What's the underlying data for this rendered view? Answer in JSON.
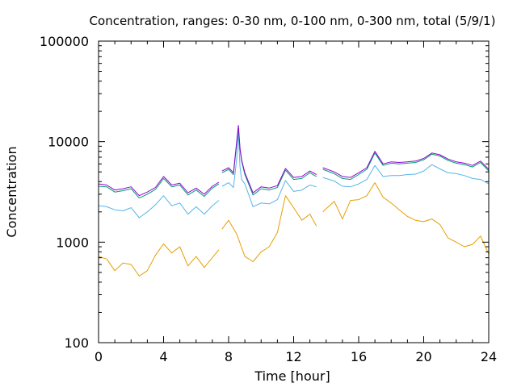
{
  "chart_data": {
    "type": "line",
    "title": "Concentration, ranges: 0-30 nm, 0-100 nm, 0-300 nm, total (5/9/1)",
    "xlabel": "Time [hour]",
    "ylabel": "Concentration",
    "xlim": [
      0,
      24
    ],
    "ylim": [
      100,
      100000
    ],
    "yscale": "log",
    "grid": false,
    "legend": "none",
    "x_ticks": [
      0,
      4,
      8,
      12,
      16,
      20,
      24
    ],
    "x_tick_labels": [
      "0",
      "4",
      "8",
      "12",
      "16",
      "20",
      "24"
    ],
    "y_ticks": [
      100,
      1000,
      10000,
      100000
    ],
    "y_tick_labels": [
      "100",
      "1000",
      "10000",
      "100000"
    ],
    "series": [
      {
        "color": "#e69f00",
        "segments": [
          {
            "x": [
              0.0,
              0.5,
              1.0,
              1.5,
              2.0,
              2.5,
              3.0,
              3.5,
              4.0,
              4.5,
              5.0,
              5.5,
              6.0,
              6.5,
              7.0,
              7.4
            ],
            "y": [
              720,
              680,
              520,
              620,
              600,
              460,
              520,
              740,
              960,
              780,
              900,
              580,
              720,
              560,
              700,
              840
            ]
          },
          {
            "x": [
              7.6,
              8.0,
              8.5,
              9.0,
              9.5,
              10.0,
              10.5,
              11.0,
              11.5,
              12.0,
              12.5,
              13.0,
              13.4
            ],
            "y": [
              1350,
              1650,
              1200,
              720,
              640,
              800,
              900,
              1250,
              2900,
              2200,
              1650,
              1900,
              1450
            ]
          },
          {
            "x": [
              13.8,
              14.5,
              15.0,
              15.5,
              16.0,
              16.5,
              17.0,
              17.5,
              18.0,
              18.5,
              19.0,
              19.5,
              20.0,
              20.5,
              21.0,
              21.5,
              22.0,
              22.5,
              23.0,
              23.5,
              24.0
            ],
            "y": [
              2000,
              2550,
              1700,
              2600,
              2650,
              2900,
              3900,
              2800,
              2450,
              2100,
              1800,
              1650,
              1600,
              1700,
              1500,
              1100,
              1000,
              900,
              950,
              1150,
              760
            ]
          }
        ]
      },
      {
        "color": "#56b4e9",
        "segments": [
          {
            "x": [
              0.0,
              0.5,
              1.0,
              1.5,
              2.0,
              2.5,
              3.0,
              3.5,
              4.0,
              4.5,
              5.0,
              5.5,
              6.0,
              6.5,
              7.0,
              7.4
            ],
            "y": [
              2300,
              2250,
              2100,
              2050,
              2200,
              1750,
              2000,
              2350,
              2900,
              2300,
              2450,
              1900,
              2250,
              1900,
              2300,
              2600
            ]
          },
          {
            "x": [
              7.6,
              8.0,
              8.3,
              8.5,
              8.6,
              8.7,
              8.8,
              9.0,
              9.5,
              10.0,
              10.5,
              11.0,
              11.5,
              12.0,
              12.5,
              13.0,
              13.4
            ],
            "y": [
              3600,
              3900,
              3500,
              6800,
              12500,
              5600,
              4200,
              3800,
              2250,
              2450,
              2400,
              2650,
              4100,
              3200,
              3300,
              3700,
              3550
            ]
          },
          {
            "x": [
              13.8,
              14.5,
              15.0,
              15.5,
              16.0,
              16.5,
              17.0,
              17.5,
              18.0,
              18.5,
              19.0,
              19.5,
              20.0,
              20.5,
              21.0,
              21.5,
              22.0,
              22.5,
              23.0,
              23.5,
              24.0
            ],
            "y": [
              4400,
              4050,
              3600,
              3550,
              3800,
              4200,
              5800,
              4500,
              4600,
              4600,
              4700,
              4750,
              5100,
              5900,
              5350,
              4900,
              4800,
              4600,
              4300,
              4200,
              3800
            ]
          }
        ]
      },
      {
        "color": "#009e73",
        "segments": [
          {
            "x": [
              0.0,
              0.5,
              1.0,
              1.5,
              2.0,
              2.5,
              3.0,
              3.5,
              4.0,
              4.5,
              5.0,
              5.5,
              6.0,
              6.5,
              7.0,
              7.4
            ],
            "y": [
              3600,
              3550,
              3150,
              3250,
              3400,
              2750,
              3000,
              3350,
              4300,
              3550,
              3700,
              2950,
              3300,
              2850,
              3450,
              3800
            ]
          },
          {
            "x": [
              7.6,
              8.0,
              8.3,
              8.5,
              8.6,
              8.7,
              8.8,
              9.0,
              9.5,
              10.0,
              10.5,
              11.0,
              11.5,
              12.0,
              12.5,
              13.0,
              13.4
            ],
            "y": [
              4900,
              5300,
              4700,
              9800,
              14000,
              8300,
              6400,
              4700,
              2950,
              3400,
              3300,
              3500,
              5200,
              4200,
              4300,
              4900,
              4500
            ]
          },
          {
            "x": [
              13.8,
              14.5,
              15.0,
              15.5,
              16.0,
              16.5,
              17.0,
              17.5,
              18.0,
              18.5,
              19.0,
              19.5,
              20.0,
              20.5,
              21.0,
              21.5,
              22.0,
              22.5,
              23.0,
              23.5,
              24.0
            ],
            "y": [
              5300,
              4800,
              4300,
              4200,
              4700,
              5300,
              7700,
              5800,
              6100,
              6000,
              6100,
              6200,
              6600,
              7500,
              7200,
              6500,
              6100,
              5900,
              5600,
              6200,
              5100
            ]
          }
        ]
      },
      {
        "color": "#9400d3",
        "segments": [
          {
            "x": [
              0.0,
              0.5,
              1.0,
              1.5,
              2.0,
              2.5,
              3.0,
              3.5,
              4.0,
              4.5,
              5.0,
              5.5,
              6.0,
              6.5,
              7.0,
              7.4
            ],
            "y": [
              3800,
              3700,
              3300,
              3400,
              3550,
              2900,
              3150,
              3500,
              4500,
              3700,
              3850,
              3100,
              3450,
              3000,
              3600,
              3950
            ]
          },
          {
            "x": [
              7.6,
              8.0,
              8.3,
              8.5,
              8.6,
              8.7,
              8.8,
              9.0,
              9.5,
              10.0,
              10.5,
              11.0,
              11.5,
              12.0,
              12.5,
              13.0,
              13.4
            ],
            "y": [
              5100,
              5500,
              4900,
              10200,
              14500,
              8600,
              6600,
              4900,
              3100,
              3550,
              3450,
              3650,
              5400,
              4400,
              4500,
              5100,
              4700
            ]
          },
          {
            "x": [
              13.8,
              14.5,
              15.0,
              15.5,
              16.0,
              16.5,
              17.0,
              17.5,
              18.0,
              18.5,
              19.0,
              19.5,
              20.0,
              20.5,
              21.0,
              21.5,
              22.0,
              22.5,
              23.0,
              23.5,
              24.0
            ],
            "y": [
              5500,
              5000,
              4500,
              4400,
              4900,
              5500,
              8000,
              6000,
              6300,
              6200,
              6300,
              6400,
              6800,
              7700,
              7400,
              6700,
              6300,
              6100,
              5800,
              6400,
              5300
            ]
          }
        ]
      }
    ]
  }
}
